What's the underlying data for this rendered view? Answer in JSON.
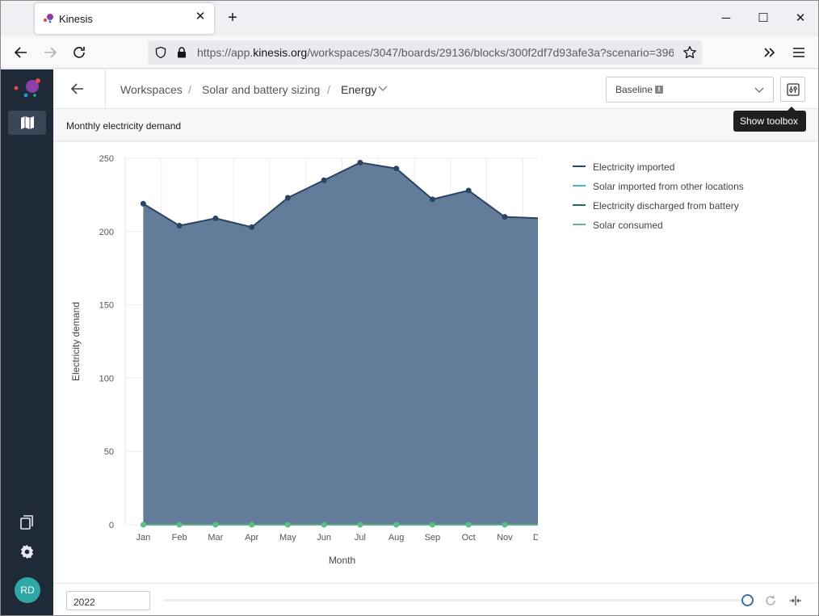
{
  "browser": {
    "tab_title": "Kinesis",
    "url_prefix": "https://app.",
    "url_domain": "kinesis.org",
    "url_rest": "/workspaces/3047/boards/29136/blocks/300f2df7d93afe3a?scenario=396"
  },
  "header": {
    "crumb_1": "Workspaces",
    "crumb_2": "Solar and battery sizing",
    "crumb_3": "Energy",
    "separator": "/",
    "scenario_value": "Baseline",
    "toolbox_tooltip": "Show toolbox"
  },
  "sidebar": {
    "avatar_initials": "RD"
  },
  "block": {
    "title": "Monthly electricity demand"
  },
  "footer": {
    "year": "2022",
    "timeline_position": 1.0
  },
  "colors": {
    "accent_blue": "#3d6ea5",
    "area_fill": "#5a7593",
    "line_dark": "#2b4463",
    "solar_green": "#5cbf7f"
  },
  "chart_data": {
    "type": "area",
    "xlabel": "Month",
    "ylabel": "Electricity demand",
    "ylim": [
      0,
      250
    ],
    "yticks": [
      0,
      50,
      100,
      150,
      200,
      250
    ],
    "categories": [
      "Jan",
      "Feb",
      "Mar",
      "Apr",
      "May",
      "Jun",
      "Jul",
      "Aug",
      "Sep",
      "Oct",
      "Nov",
      "Dec"
    ],
    "grid": true,
    "legend_position": "right",
    "series": [
      {
        "name": "Electricity imported",
        "color": "#2b4463",
        "values": [
          219,
          204,
          209,
          203,
          223,
          235,
          247,
          243,
          222,
          228,
          210,
          209
        ]
      },
      {
        "name": "Solar imported from other locations",
        "color": "#4fb3c8",
        "values": [
          0,
          0,
          0,
          0,
          0,
          0,
          0,
          0,
          0,
          0,
          0,
          0
        ]
      },
      {
        "name": "Electricity discharged from battery",
        "color": "#1e6b63",
        "values": [
          0,
          0,
          0,
          0,
          0,
          0,
          0,
          0,
          0,
          0,
          0,
          0
        ]
      },
      {
        "name": "Solar consumed",
        "color": "#5cbf7f",
        "values": [
          0,
          0,
          0,
          0,
          0,
          0,
          0,
          0,
          0,
          0,
          0,
          0
        ]
      }
    ]
  }
}
